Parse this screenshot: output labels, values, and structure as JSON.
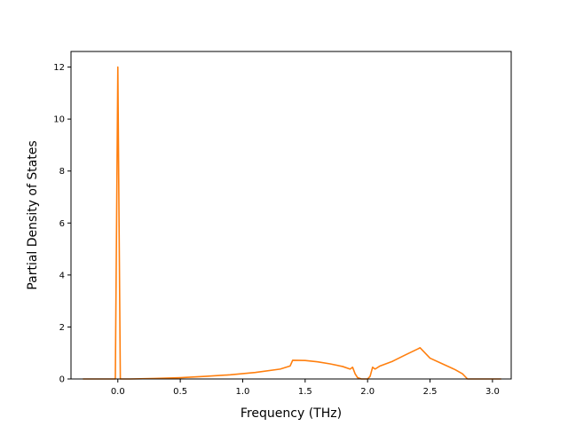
{
  "chart_data": {
    "type": "line",
    "xlabel": "Frequency (THz)",
    "ylabel": "Partial Density of States",
    "xlim": [
      -0.375,
      3.15
    ],
    "ylim": [
      0,
      12.6
    ],
    "x_ticks": [
      {
        "value": 0.0,
        "label": "0.0"
      },
      {
        "value": 0.5,
        "label": "0.5"
      },
      {
        "value": 1.0,
        "label": "1.0"
      },
      {
        "value": 1.5,
        "label": "1.5"
      },
      {
        "value": 2.0,
        "label": "2.0"
      },
      {
        "value": 2.5,
        "label": "2.5"
      },
      {
        "value": 3.0,
        "label": "3.0"
      }
    ],
    "y_ticks": [
      {
        "value": 0,
        "label": "0"
      },
      {
        "value": 2,
        "label": "2"
      },
      {
        "value": 4,
        "label": "4"
      },
      {
        "value": 6,
        "label": "6"
      },
      {
        "value": 8,
        "label": "8"
      },
      {
        "value": 10,
        "label": "10"
      },
      {
        "value": 12,
        "label": "12"
      }
    ],
    "grid": false,
    "series": [
      {
        "color": "#ff7f0e",
        "x": [
          -0.28,
          -0.02,
          -0.01,
          0.0,
          0.01,
          0.02,
          0.03,
          0.1,
          0.3,
          0.5,
          0.7,
          0.9,
          1.1,
          1.3,
          1.38,
          1.4,
          1.5,
          1.6,
          1.7,
          1.8,
          1.86,
          1.88,
          1.9,
          1.92,
          1.95,
          2.0,
          2.02,
          2.04,
          2.06,
          2.1,
          2.2,
          2.3,
          2.4,
          2.42,
          2.5,
          2.6,
          2.7,
          2.76,
          2.8,
          3.07
        ],
        "y": [
          0.0,
          0.0,
          6.0,
          12.0,
          6.0,
          0.0,
          0.0,
          0.0,
          0.02,
          0.05,
          0.1,
          0.16,
          0.25,
          0.38,
          0.5,
          0.72,
          0.71,
          0.66,
          0.58,
          0.48,
          0.38,
          0.45,
          0.2,
          0.05,
          0.0,
          0.0,
          0.1,
          0.45,
          0.38,
          0.5,
          0.68,
          0.92,
          1.15,
          1.2,
          0.8,
          0.58,
          0.36,
          0.2,
          0.0,
          0.0
        ]
      }
    ]
  }
}
